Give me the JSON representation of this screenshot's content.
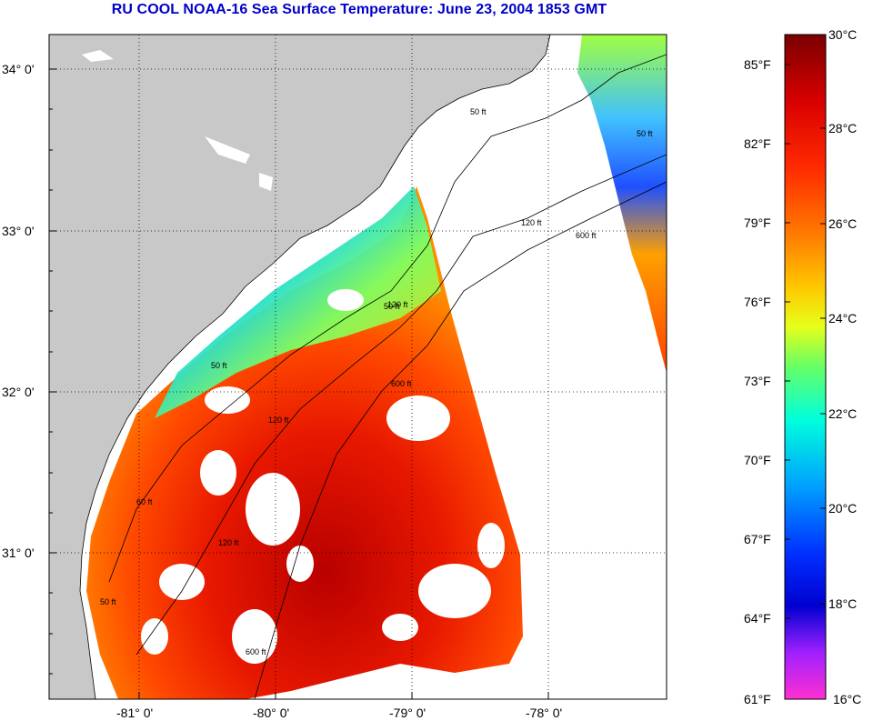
{
  "title": "RU COOL  NOAA-16  Sea Surface Temperature:  June 23, 2004 1853 GMT",
  "lat_labels": [
    "34° 0'",
    "33° 0'",
    "32° 0'",
    "31° 0'"
  ],
  "lon_labels": [
    "-81° 0'",
    "-80° 0'",
    "-79° 0'",
    "-78° 0'"
  ],
  "contour_labels": [
    "50 ft",
    "120 ft",
    "600 ft",
    "50 ft",
    "120 ft",
    "600 ft",
    "120 ft",
    "50 ft",
    "600 ft",
    "120 ft",
    "50 ft",
    "60 ft",
    "50 ft"
  ],
  "colorbar": {
    "fahrenheit": [
      "85°F",
      "82°F",
      "79°F",
      "76°F",
      "73°F",
      "70°F",
      "67°F",
      "64°F",
      "61°F"
    ],
    "celsius": [
      "30°C",
      "28°C",
      "26°C",
      "24°C",
      "22°C",
      "20°C",
      "18°C",
      "16°C"
    ],
    "stops": [
      "#7a0000",
      "#d80000",
      "#ff2a00",
      "#ff7a00",
      "#ffc800",
      "#e6ff1a",
      "#66ff66",
      "#00ffdc",
      "#00a0ff",
      "#0030ff",
      "#0000d0",
      "#a020ff",
      "#ff30d0"
    ]
  },
  "colors": {
    "title": "#0000c8",
    "land": "#c8c8c8",
    "no_data": "#ffffff"
  }
}
